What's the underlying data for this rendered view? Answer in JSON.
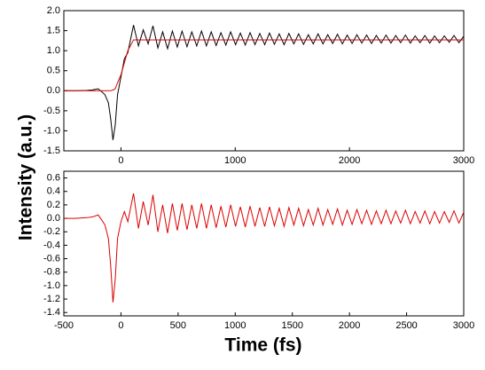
{
  "chart_data": [
    {
      "type": "line",
      "ylabel": "Intensity (a.u.)",
      "xlim": [
        -500,
        3000
      ],
      "ylim": [
        -1.5,
        2.0
      ],
      "xticks": [
        0,
        1000,
        2000,
        3000
      ],
      "yticks": [
        {
          "value": -1.5,
          "label": "-1.5"
        },
        {
          "value": -1,
          "label": "-1.0"
        },
        {
          "value": -0.5,
          "label": "-0.5"
        },
        {
          "value": 0,
          "label": "0.0"
        },
        {
          "value": 0.5,
          "label": "0.5"
        },
        {
          "value": 1,
          "label": "1.0"
        },
        {
          "value": 1.5,
          "label": "1.5"
        },
        {
          "value": 2,
          "label": "2.0"
        }
      ],
      "x": [
        -500,
        -400,
        -300,
        -250,
        -200,
        -170,
        -140,
        -110,
        -90,
        -70,
        -50,
        -30,
        0,
        30,
        60,
        110,
        153,
        195,
        238,
        280,
        323,
        365,
        408,
        450,
        493,
        535,
        578,
        620,
        663,
        705,
        748,
        790,
        833,
        875,
        918,
        960,
        1003,
        1045,
        1088,
        1130,
        1173,
        1215,
        1258,
        1300,
        1343,
        1385,
        1428,
        1470,
        1513,
        1555,
        1598,
        1640,
        1683,
        1725,
        1768,
        1810,
        1853,
        1895,
        1938,
        1980,
        2023,
        2065,
        2108,
        2150,
        2193,
        2235,
        2278,
        2320,
        2363,
        2405,
        2448,
        2490,
        2533,
        2575,
        2618,
        2660,
        2703,
        2745,
        2788,
        2830,
        2873,
        2915,
        2958,
        3000
      ],
      "series": [
        {
          "color": "#000000",
          "values": [
            0,
            0,
            0.01,
            0.02,
            0.05,
            -0.02,
            -0.1,
            -0.3,
            -0.7,
            -1.23,
            -0.85,
            -0.1,
            0.35,
            0.8,
            0.95,
            1.64,
            1.12,
            1.52,
            1.17,
            1.62,
            1.07,
            1.47,
            1.05,
            1.49,
            1.09,
            1.49,
            1.1,
            1.47,
            1.12,
            1.49,
            1.12,
            1.47,
            1.13,
            1.45,
            1.14,
            1.47,
            1.15,
            1.44,
            1.14,
            1.45,
            1.15,
            1.43,
            1.15,
            1.44,
            1.16,
            1.42,
            1.15,
            1.43,
            1.17,
            1.42,
            1.16,
            1.4,
            1.17,
            1.42,
            1.17,
            1.4,
            1.18,
            1.41,
            1.17,
            1.39,
            1.18,
            1.4,
            1.19,
            1.39,
            1.18,
            1.38,
            1.19,
            1.39,
            1.19,
            1.38,
            1.2,
            1.39,
            1.19,
            1.37,
            1.2,
            1.38,
            1.19,
            1.37,
            1.2,
            1.37,
            1.21,
            1.38,
            1.2,
            1.36
          ]
        },
        {
          "color": "#dd0000",
          "values": [
            0,
            0,
            0,
            0,
            0,
            0,
            0,
            0,
            0,
            0.02,
            0.05,
            0.2,
            0.4,
            0.7,
            1.0,
            1.27,
            1.27,
            1.27,
            1.27,
            1.27,
            1.27,
            1.27,
            1.27,
            1.27,
            1.27,
            1.27,
            1.27,
            1.27,
            1.27,
            1.27,
            1.27,
            1.27,
            1.27,
            1.27,
            1.27,
            1.27,
            1.27,
            1.27,
            1.27,
            1.27,
            1.27,
            1.27,
            1.27,
            1.27,
            1.27,
            1.27,
            1.27,
            1.27,
            1.27,
            1.27,
            1.27,
            1.27,
            1.27,
            1.27,
            1.27,
            1.27,
            1.27,
            1.27,
            1.27,
            1.27,
            1.27,
            1.27,
            1.27,
            1.27,
            1.27,
            1.27,
            1.27,
            1.27,
            1.27,
            1.27,
            1.27,
            1.27,
            1.27,
            1.27,
            1.27,
            1.27,
            1.27,
            1.27,
            1.27,
            1.27,
            1.27,
            1.27,
            1.27,
            1.27
          ]
        }
      ]
    },
    {
      "type": "line",
      "xlabel": "Time (fs)",
      "xlim": [
        -500,
        3000
      ],
      "ylim": [
        -1.45,
        0.7
      ],
      "xticks": [
        -500,
        0,
        500,
        1000,
        1500,
        2000,
        2500,
        3000
      ],
      "yticks": [
        {
          "value": -1.4,
          "label": "-1.4"
        },
        {
          "value": -1.2,
          "label": "-1.2"
        },
        {
          "value": -1,
          "label": "-1.0"
        },
        {
          "value": -0.8,
          "label": "-0.8"
        },
        {
          "value": -0.6,
          "label": "-0.6"
        },
        {
          "value": -0.4,
          "label": "-0.4"
        },
        {
          "value": -0.2,
          "label": "-0.2"
        },
        {
          "value": 0,
          "label": "0.0"
        },
        {
          "value": 0.2,
          "label": "0.2"
        },
        {
          "value": 0.4,
          "label": "0.4"
        },
        {
          "value": 0.6,
          "label": "0.6"
        }
      ],
      "x": [
        -500,
        -400,
        -300,
        -250,
        -200,
        -170,
        -140,
        -110,
        -90,
        -70,
        -50,
        -30,
        0,
        30,
        60,
        110,
        153,
        195,
        238,
        280,
        323,
        365,
        408,
        450,
        493,
        535,
        578,
        620,
        663,
        705,
        748,
        790,
        833,
        875,
        918,
        960,
        1003,
        1045,
        1088,
        1130,
        1173,
        1215,
        1258,
        1300,
        1343,
        1385,
        1428,
        1470,
        1513,
        1555,
        1598,
        1640,
        1683,
        1725,
        1768,
        1810,
        1853,
        1895,
        1938,
        1980,
        2023,
        2065,
        2108,
        2150,
        2193,
        2235,
        2278,
        2320,
        2363,
        2405,
        2448,
        2490,
        2533,
        2575,
        2618,
        2660,
        2703,
        2745,
        2788,
        2830,
        2873,
        2915,
        2958,
        3000
      ],
      "series": [
        {
          "color": "#dd0000",
          "values": [
            0,
            0,
            0.01,
            0.02,
            0.05,
            -0.02,
            -0.1,
            -0.3,
            -0.7,
            -1.25,
            -0.9,
            -0.3,
            -0.05,
            0.1,
            -0.05,
            0.37,
            -0.15,
            0.25,
            -0.1,
            0.35,
            -0.2,
            0.2,
            -0.22,
            0.22,
            -0.18,
            0.22,
            -0.17,
            0.2,
            -0.15,
            0.22,
            -0.15,
            0.2,
            -0.14,
            0.18,
            -0.13,
            0.2,
            -0.12,
            0.17,
            -0.13,
            0.18,
            -0.12,
            0.16,
            -0.12,
            0.17,
            -0.11,
            0.15,
            -0.12,
            0.16,
            -0.1,
            0.15,
            -0.11,
            0.13,
            -0.1,
            0.15,
            -0.1,
            0.13,
            -0.09,
            0.14,
            -0.1,
            0.12,
            -0.09,
            0.13,
            -0.08,
            0.12,
            -0.09,
            0.11,
            -0.08,
            0.12,
            -0.08,
            0.11,
            -0.07,
            0.12,
            -0.08,
            0.1,
            -0.07,
            0.11,
            -0.08,
            0.1,
            -0.07,
            0.1,
            -0.06,
            0.11,
            -0.07,
            0.09
          ]
        }
      ]
    }
  ]
}
